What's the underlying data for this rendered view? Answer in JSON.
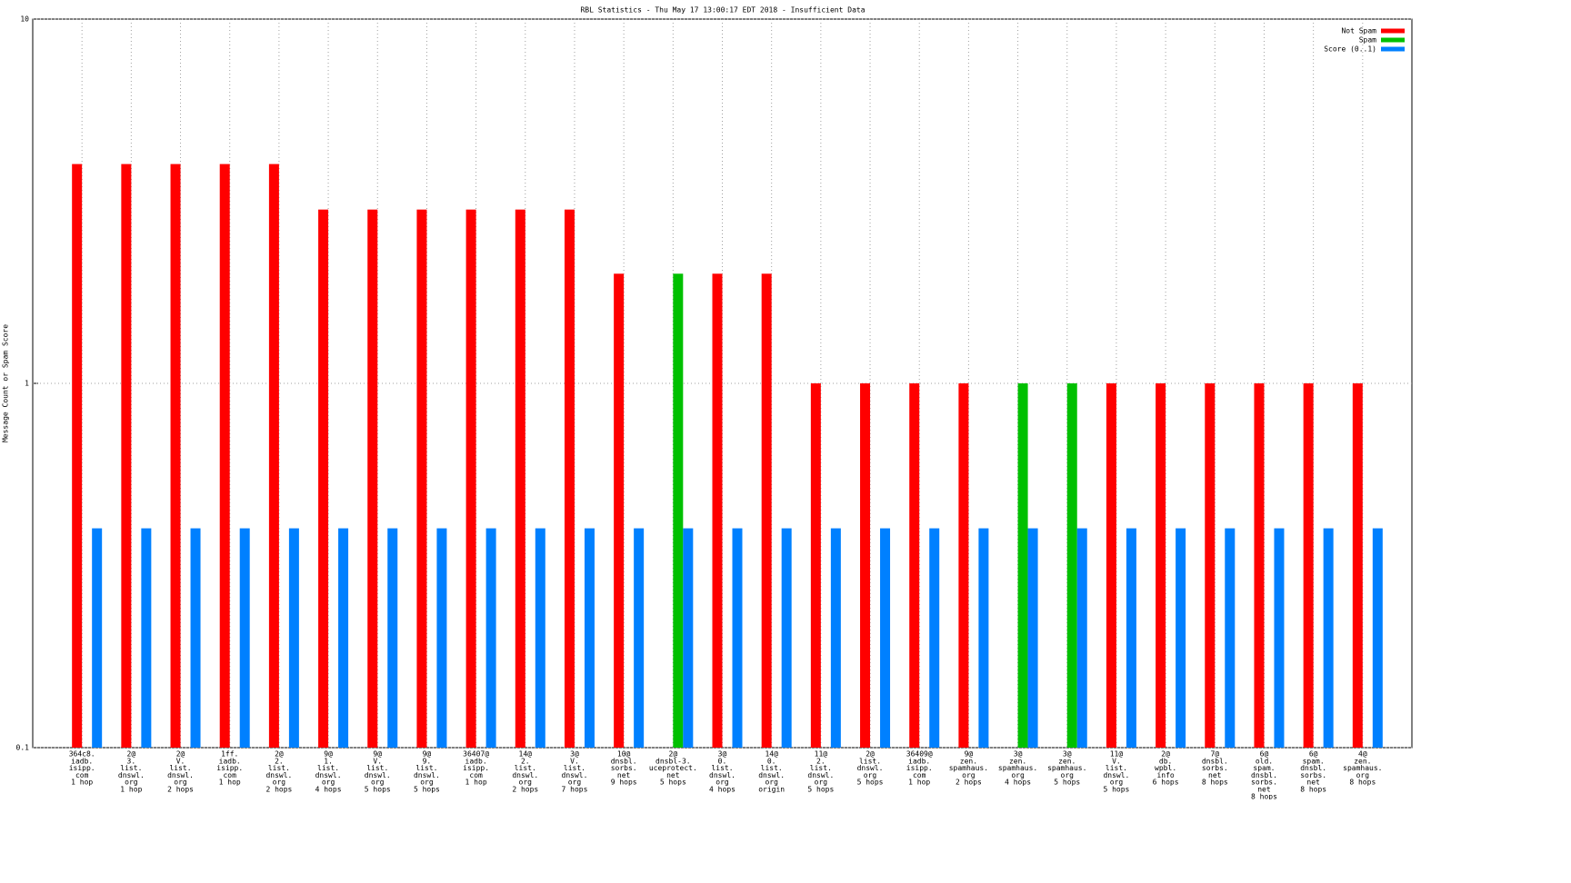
{
  "chart_data": {
    "type": "bar",
    "title": "RBL Statistics - Thu May 17 13:00:17 EDT 2018 - Insufficient Data",
    "y_label": "Message Count or Spam Score",
    "categories": [
      [
        "364c8.",
        "iadb.",
        "isipp.",
        "com",
        "1 hop"
      ],
      [
        "2@",
        "3.",
        "list.",
        "dnswl.",
        "org",
        "1 hop"
      ],
      [
        "2@",
        "V.",
        "list.",
        "dnswl.",
        "org",
        "2 hops"
      ],
      [
        "1ff.",
        "iadb.",
        "isipp.",
        "com",
        "1 hop"
      ],
      [
        "2@",
        "2.",
        "list.",
        "dnswl.",
        "org",
        "2 hops"
      ],
      [
        "9@",
        "1.",
        "list.",
        "dnswl.",
        "org",
        "4 hops"
      ],
      [
        "9@",
        "V.",
        "list.",
        "dnswl.",
        "org",
        "5 hops"
      ],
      [
        "9@",
        "9.",
        "list.",
        "dnswl.",
        "org",
        "5 hops"
      ],
      [
        "36407@",
        "iadb.",
        "isipp.",
        "com",
        "1 hop"
      ],
      [
        "14@",
        "2.",
        "list.",
        "dnswl.",
        "org",
        "2 hops"
      ],
      [
        "3@",
        "V.",
        "list.",
        "dnswl.",
        "org",
        "7 hops"
      ],
      [
        "10@",
        "dnsbl.",
        "sorbs.",
        "net",
        "9 hops"
      ],
      [
        "2@",
        "dnsbl-3.",
        "uceprotect.",
        "net",
        "5 hops"
      ],
      [
        "3@",
        "0.",
        "list.",
        "dnswl.",
        "org",
        "4 hops"
      ],
      [
        "14@",
        "0.",
        "list.",
        "dnswl.",
        "org",
        "origin"
      ],
      [
        "11@",
        "2.",
        "list.",
        "dnswl.",
        "org",
        "5 hops"
      ],
      [
        "2@",
        "list.",
        "dnswl.",
        "org",
        "5 hops"
      ],
      [
        "36409@",
        "iadb.",
        "isipp.",
        "com",
        "1 hop"
      ],
      [
        "9@",
        "zen.",
        "spamhaus.",
        "org",
        "2 hops"
      ],
      [
        "3@",
        "zen.",
        "spamhaus.",
        "org",
        "4 hops"
      ],
      [
        "3@",
        "zen.",
        "spamhaus.",
        "org",
        "5 hops"
      ],
      [
        "11@",
        "V.",
        "list.",
        "dnswl.",
        "org",
        "5 hops"
      ],
      [
        "2@",
        "db.",
        "wpbl.",
        "info",
        "6 hops"
      ],
      [
        "7@",
        "dnsbl.",
        "sorbs.",
        "net",
        "8 hops"
      ],
      [
        "6@",
        "old.",
        "spam.",
        "dnsbl.",
        "sorbs.",
        "net",
        "8 hops"
      ],
      [
        "6@",
        "spam.",
        "dnsbl.",
        "sorbs.",
        "net",
        "8 hops"
      ],
      [
        "4@",
        "zen.",
        "spamhaus.",
        "org",
        "8 hops"
      ]
    ],
    "series": [
      {
        "name": "Not Spam",
        "color": "#ff0000",
        "values": [
          4,
          4,
          4,
          4,
          4,
          3,
          3,
          3,
          3,
          3,
          3,
          2,
          null,
          2,
          2,
          1,
          1,
          1,
          1,
          null,
          null,
          1,
          1,
          1,
          1,
          1,
          1
        ]
      },
      {
        "name": "Spam",
        "color": "#00c000",
        "values": [
          null,
          null,
          null,
          null,
          null,
          null,
          null,
          null,
          null,
          null,
          null,
          null,
          2,
          null,
          null,
          null,
          null,
          null,
          null,
          1,
          1,
          null,
          null,
          null,
          null,
          null,
          null
        ]
      },
      {
        "name": "Score (0..1)",
        "color": "#0080ff",
        "values": [
          0.4,
          0.4,
          0.4,
          0.4,
          0.4,
          0.4,
          0.4,
          0.4,
          0.4,
          0.4,
          0.4,
          0.4,
          0.4,
          0.4,
          0.4,
          0.4,
          0.4,
          0.4,
          0.4,
          0.4,
          0.4,
          0.4,
          0.4,
          0.4,
          0.4,
          0.4,
          0.4
        ]
      }
    ],
    "ylim": [
      0.1,
      10
    ],
    "yticks": [
      0.1,
      1,
      10
    ],
    "log_scale": true,
    "grid": true,
    "legend": "top-right"
  }
}
